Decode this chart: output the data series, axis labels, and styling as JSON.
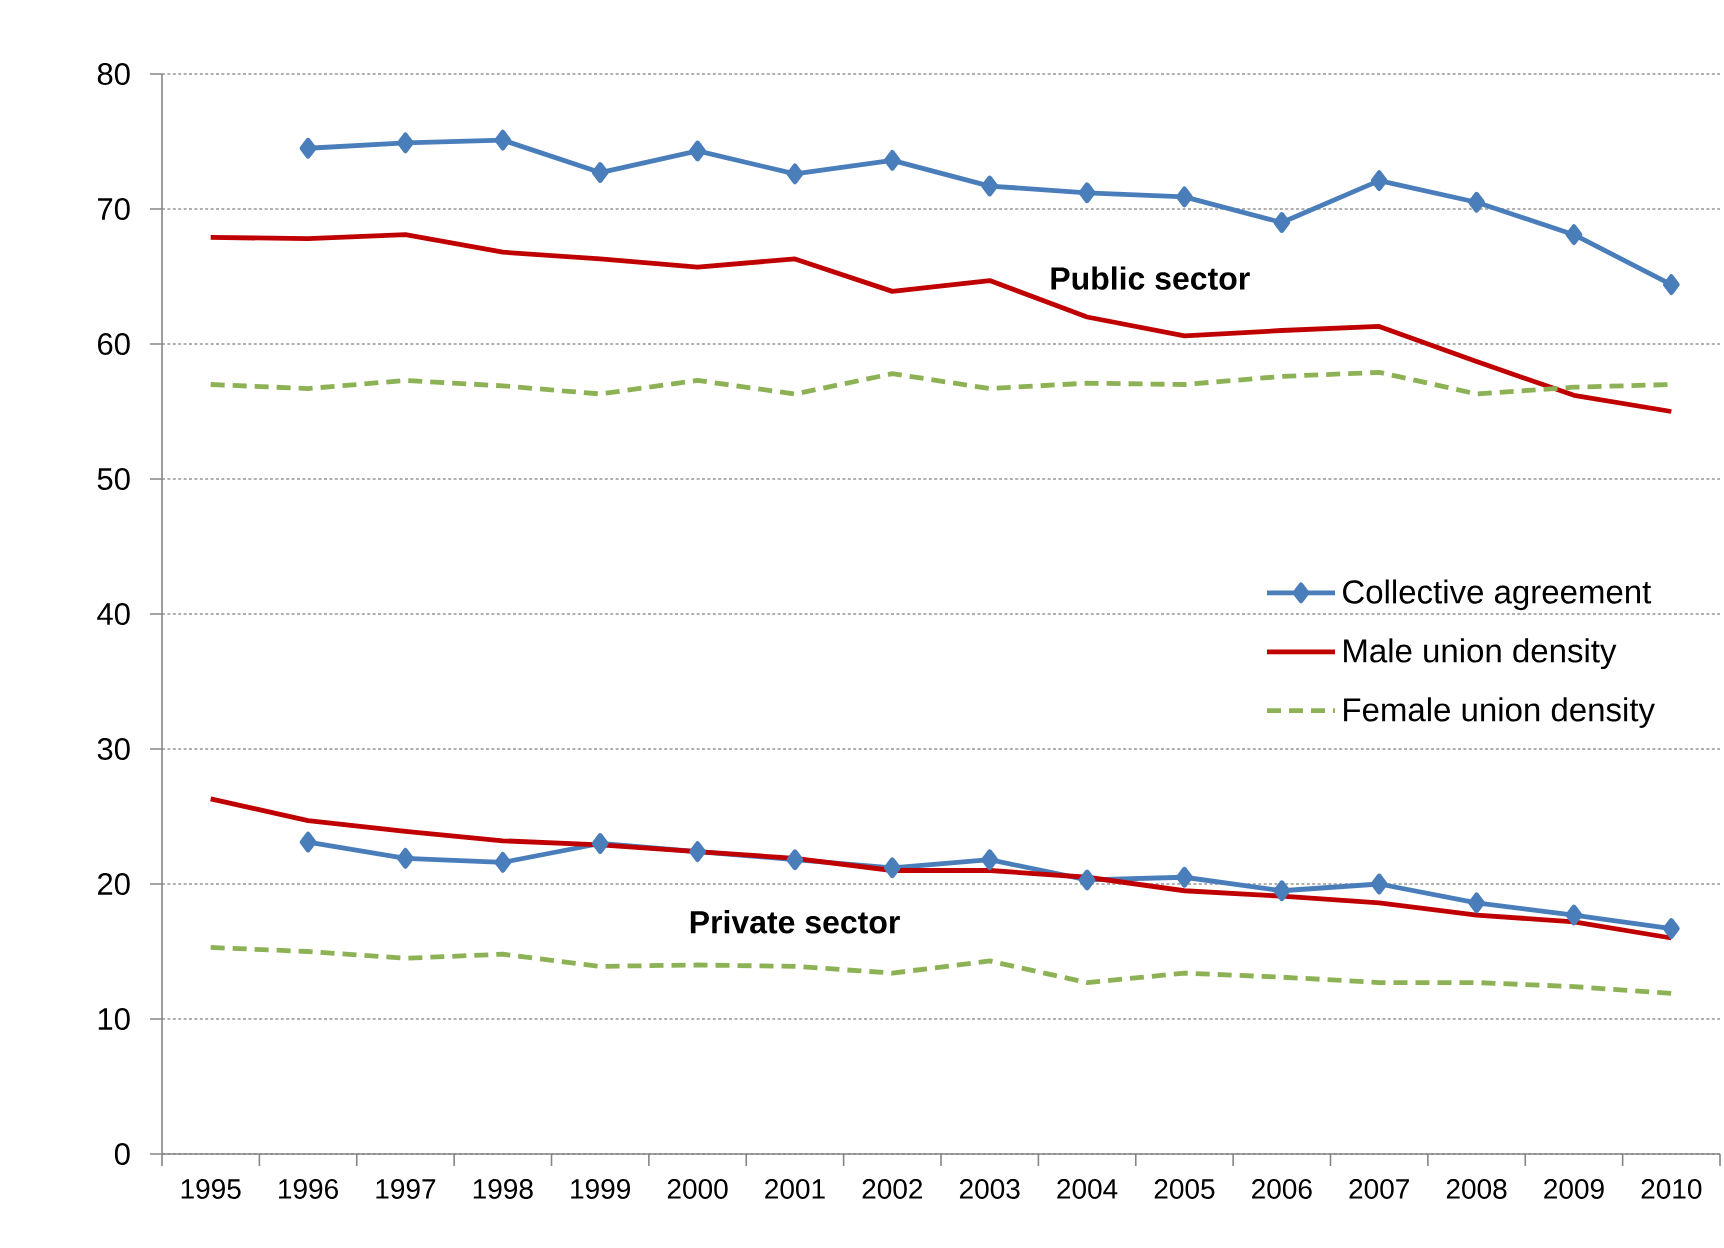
{
  "chart_data": {
    "type": "line",
    "categories": [
      "1995",
      "1996",
      "1997",
      "1998",
      "1999",
      "2000",
      "2001",
      "2002",
      "2003",
      "2004",
      "2005",
      "2006",
      "2007",
      "2008",
      "2009",
      "2010"
    ],
    "ylim": [
      0,
      80
    ],
    "yticks": [
      0,
      10,
      20,
      30,
      40,
      50,
      60,
      70,
      80
    ],
    "grid": "y",
    "legend": "right",
    "series": [
      {
        "name": "Collective agreement",
        "color": "#4a7ebb",
        "marker": "diamond",
        "line_style": "solid",
        "values": [
          null,
          74.5,
          74.9,
          75.1,
          72.7,
          74.3,
          72.6,
          73.6,
          71.7,
          71.2,
          70.9,
          69.0,
          72.1,
          70.5,
          68.1,
          64.4
        ]
      },
      {
        "name": "Male union density",
        "color": "#c00000",
        "marker": "none",
        "line_style": "solid",
        "values": [
          67.9,
          67.8,
          68.1,
          66.8,
          66.3,
          65.7,
          66.3,
          63.9,
          64.7,
          62.0,
          60.6,
          61.0,
          61.3,
          58.7,
          56.2,
          55.0
        ]
      },
      {
        "name": "Female union density",
        "color": "#8db255",
        "marker": "none",
        "line_style": "dashed",
        "values": [
          57.0,
          56.7,
          57.3,
          56.9,
          56.3,
          57.3,
          56.3,
          57.8,
          56.7,
          57.1,
          57.0,
          57.6,
          57.9,
          56.3,
          56.8,
          57.0
        ]
      },
      {
        "color": "#4a7ebb",
        "marker": "diamond",
        "line_style": "solid",
        "values": [
          null,
          23.1,
          21.9,
          21.6,
          23.0,
          22.4,
          21.8,
          21.2,
          21.8,
          20.3,
          20.5,
          19.5,
          20.0,
          18.6,
          17.7,
          16.7
        ]
      },
      {
        "color": "#c00000",
        "marker": "none",
        "line_style": "solid",
        "values": [
          26.3,
          24.7,
          23.9,
          23.2,
          22.9,
          22.4,
          21.9,
          21.0,
          21.0,
          20.5,
          19.5,
          19.1,
          18.6,
          17.7,
          17.2,
          16.0
        ]
      },
      {
        "color": "#8db255",
        "marker": "none",
        "line_style": "dashed",
        "values": [
          15.3,
          15.0,
          14.5,
          14.8,
          13.9,
          14.0,
          13.9,
          13.4,
          14.3,
          12.7,
          13.4,
          13.1,
          12.7,
          12.7,
          12.4,
          11.9
        ]
      }
    ],
    "annotations": [
      "Public sector",
      "Private sector"
    ]
  }
}
